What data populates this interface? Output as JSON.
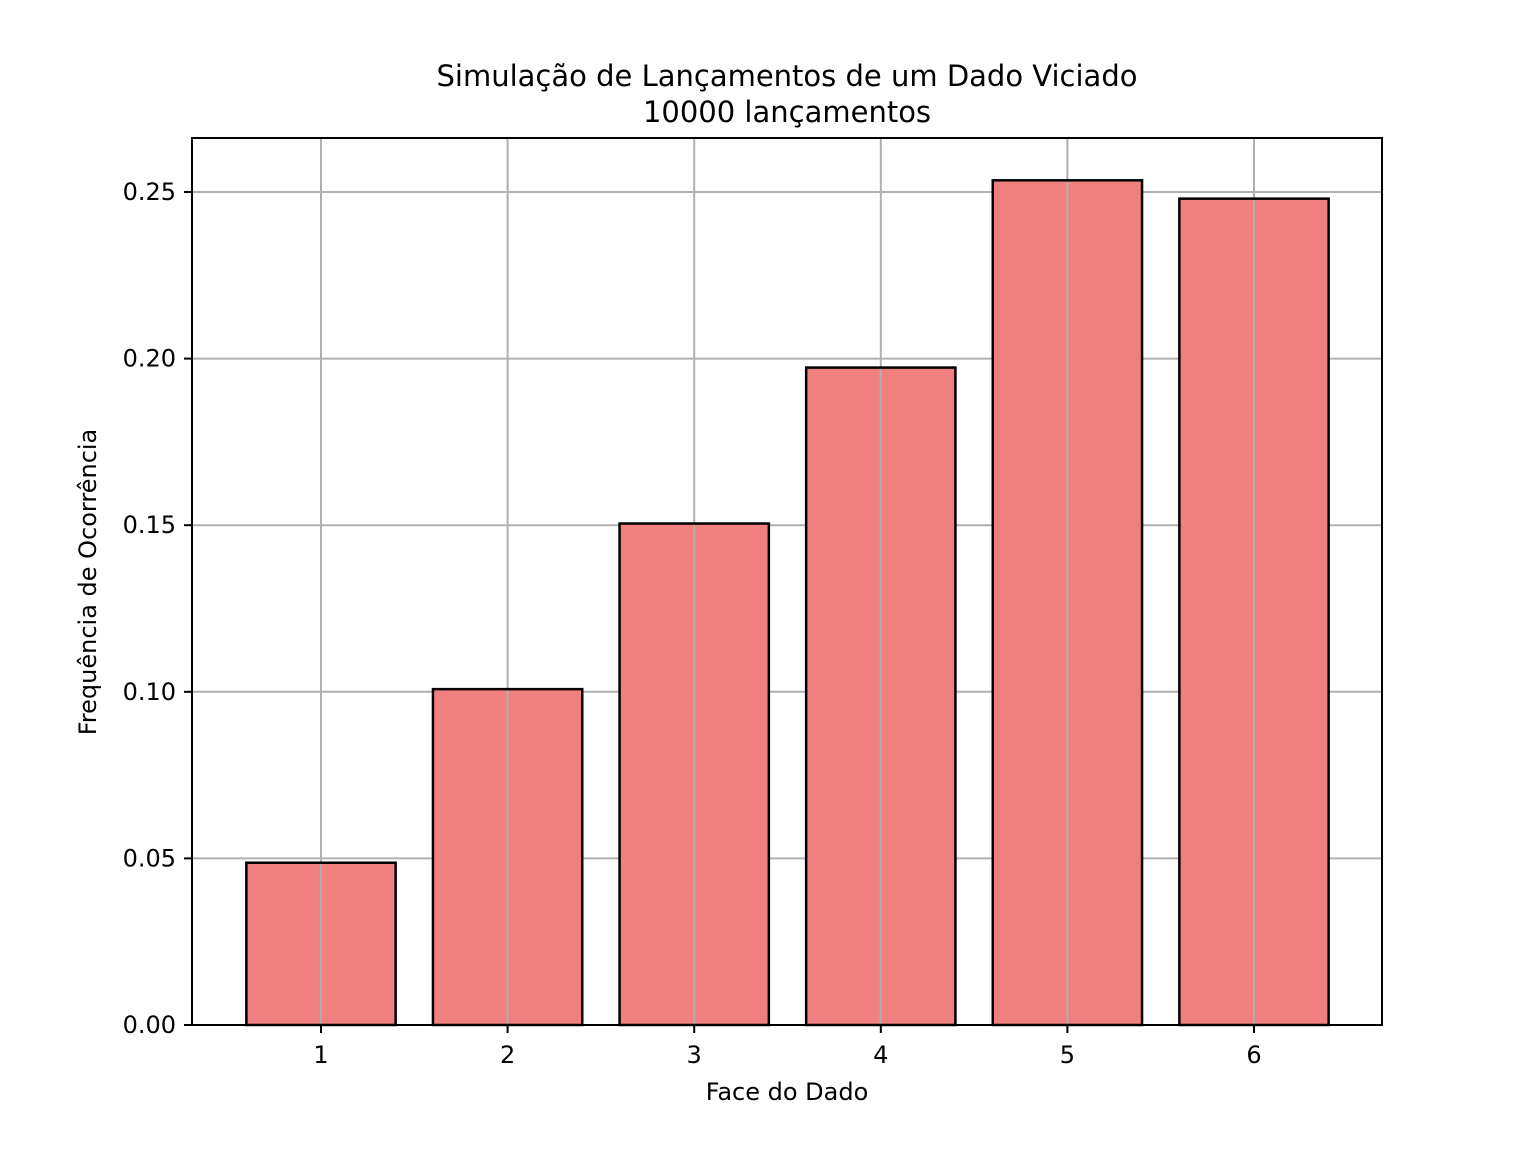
{
  "chart_data": {
    "type": "bar",
    "title": "Simulação de Lançamentos de um Dado Viciado",
    "subtitle": "10000 lançamentos",
    "xlabel": "Face do Dado",
    "ylabel": "Frequência de Ocorrência",
    "categories": [
      "1",
      "2",
      "3",
      "4",
      "5",
      "6"
    ],
    "values": [
      0.0487,
      0.1008,
      0.1505,
      0.1973,
      0.2535,
      0.248
    ],
    "x_ticks": [
      "1",
      "2",
      "3",
      "4",
      "5",
      "6"
    ],
    "y_ticks": [
      "0.00",
      "0.05",
      "0.10",
      "0.15",
      "0.20",
      "0.25"
    ],
    "ylim": [
      0,
      0.2662
    ],
    "grid": true,
    "colors": {
      "bar_fill": "#f08080",
      "bar_edge": "#000000",
      "grid": "#b0b0b0",
      "axes": "#000000"
    }
  }
}
